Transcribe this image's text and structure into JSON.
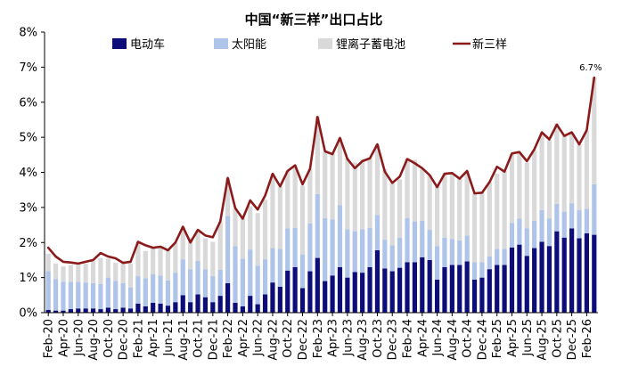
{
  "chart_data": {
    "type": "bar",
    "title": "中国“新三样”出口占比",
    "xlabel": "",
    "ylabel": "",
    "ylim": [
      0,
      8
    ],
    "yticks": [
      "0%",
      "1%",
      "2%",
      "3%",
      "4%",
      "5%",
      "6%",
      "7%",
      "8%"
    ],
    "grid": false,
    "legend_position": "top",
    "stacked": true,
    "categories": [
      "Feb-20",
      "Mar-20",
      "Apr-20",
      "May-20",
      "Jun-20",
      "Jul-20",
      "Aug-20",
      "Sep-20",
      "Oct-20",
      "Nov-20",
      "Dec-20",
      "Jan-21",
      "Feb-21",
      "Mar-21",
      "Apr-21",
      "May-21",
      "Jun-21",
      "Jul-21",
      "Aug-21",
      "Sep-21",
      "Oct-21",
      "Nov-21",
      "Dec-21",
      "Jan-22",
      "Feb-22",
      "Mar-22",
      "Apr-22",
      "May-22",
      "Jun-22",
      "Jul-22",
      "Aug-22",
      "Sep-22",
      "Oct-22",
      "Nov-22",
      "Dec-22",
      "Jan-23",
      "Feb-23",
      "Mar-23",
      "Apr-23",
      "May-23",
      "Jun-23",
      "Jul-23",
      "Aug-23",
      "Sep-23",
      "Oct-23",
      "Nov-23",
      "Dec-23",
      "Jan-24",
      "Feb-24",
      "Mar-24",
      "Apr-24",
      "May-24",
      "Jun-24",
      "Jul-24",
      "Aug-24",
      "Sep-24",
      "Oct-24",
      "Nov-24",
      "Dec-24",
      "Jan-25",
      "Feb-25",
      "Mar-25",
      "Apr-25",
      "May-25",
      "Jun-25",
      "Jul-25",
      "Aug-25",
      "Sep-25",
      "Oct-25",
      "Nov-25",
      "Dec-25",
      "Jan-26",
      "Feb-26",
      "Mar-26"
    ],
    "xtick_labels": [
      "Feb-20",
      "Apr-20",
      "Jun-20",
      "Aug-20",
      "Oct-20",
      "Dec-20",
      "Feb-21",
      "Apr-21",
      "Jun-21",
      "Aug-21",
      "Oct-21",
      "Dec-21",
      "Feb-22",
      "Apr-22",
      "Jun-22",
      "Aug-22",
      "Oct-22",
      "Dec-22",
      "Feb-23",
      "Apr-23",
      "Jun-23",
      "Aug-23",
      "Oct-23",
      "Dec-23",
      "Feb-24",
      "Apr-24",
      "Jun-24",
      "Aug-24",
      "Oct-24",
      "Dec-24",
      "Feb-25",
      "Apr-25",
      "Jun-25",
      "Aug-25",
      "Oct-25",
      "Dec-25",
      "Feb-26"
    ],
    "series": [
      {
        "name": "电动车",
        "kind": "bar",
        "color": "#0d0d7a",
        "values": [
          0.08,
          0.06,
          0.06,
          0.1,
          0.12,
          0.12,
          0.12,
          0.1,
          0.14,
          0.1,
          0.14,
          0.12,
          0.26,
          0.18,
          0.28,
          0.26,
          0.2,
          0.3,
          0.5,
          0.3,
          0.52,
          0.44,
          0.3,
          0.48,
          0.84,
          0.28,
          0.18,
          0.48,
          0.24,
          0.52,
          0.86,
          0.74,
          1.2,
          1.3,
          0.7,
          1.18,
          1.56,
          0.9,
          1.06,
          1.3,
          1.0,
          1.16,
          1.14,
          1.3,
          1.78,
          1.26,
          1.18,
          1.28,
          1.44,
          1.44,
          1.58,
          1.5,
          0.94,
          1.3,
          1.36,
          1.36,
          1.46,
          0.94,
          1.0,
          1.24,
          1.36,
          1.36,
          1.86,
          1.94,
          1.62,
          1.84,
          2.02,
          1.9,
          2.32,
          2.14,
          2.4,
          2.12,
          2.26,
          2.22
        ]
      },
      {
        "name": "太阳能",
        "kind": "bar",
        "color": "#aec4e8",
        "values": [
          1.1,
          0.9,
          0.82,
          0.78,
          0.76,
          0.74,
          0.72,
          0.72,
          0.86,
          0.8,
          0.7,
          0.6,
          0.78,
          0.8,
          0.82,
          0.8,
          0.72,
          0.84,
          1.02,
          0.94,
          0.96,
          0.8,
          0.74,
          0.74,
          1.92,
          1.62,
          1.36,
          1.32,
          1.1,
          1.0,
          0.98,
          1.08,
          1.2,
          1.12,
          0.96,
          1.36,
          1.82,
          1.8,
          1.6,
          1.76,
          1.38,
          1.16,
          1.24,
          1.12,
          1.0,
          0.82,
          0.74,
          0.86,
          1.26,
          1.16,
          1.04,
          0.86,
          0.96,
          0.84,
          0.74,
          0.7,
          0.74,
          0.5,
          0.44,
          0.36,
          0.46,
          0.46,
          0.7,
          0.74,
          0.78,
          0.78,
          0.9,
          0.78,
          0.78,
          0.74,
          0.72,
          0.8,
          0.7,
          1.44
        ]
      },
      {
        "name": "锂离子蓄电池",
        "kind": "bar",
        "color": "#d9d9d9",
        "values": [
          0.5,
          0.44,
          0.44,
          0.48,
          0.5,
          0.54,
          0.62,
          0.74,
          0.54,
          0.52,
          0.56,
          0.68,
          0.98,
          0.78,
          0.76,
          0.8,
          0.88,
          0.86,
          0.92,
          0.9,
          0.86,
          0.88,
          0.98,
          1.38,
          1.08,
          1.06,
          1.16,
          1.24,
          1.5,
          1.7,
          2.12,
          1.76,
          1.64,
          1.8,
          1.96,
          1.56,
          2.22,
          1.88,
          1.86,
          1.92,
          2.02,
          1.96,
          1.98,
          2.0,
          2.02,
          2.02,
          1.8,
          1.66,
          1.7,
          1.76,
          1.48,
          1.56,
          1.7,
          1.84,
          1.88,
          1.76,
          1.84,
          1.96,
          1.98,
          2.12,
          2.14,
          2.22,
          1.96,
          1.88,
          1.88,
          2.02,
          2.2,
          2.24,
          2.3,
          2.16,
          2.0,
          1.88,
          2.22,
          3.04
        ]
      },
      {
        "name": "新三样",
        "kind": "line",
        "color": "#8b1a1a",
        "values": [
          1.85,
          1.6,
          1.45,
          1.43,
          1.4,
          1.45,
          1.5,
          1.7,
          1.6,
          1.55,
          1.42,
          1.45,
          2.02,
          1.92,
          1.85,
          1.88,
          1.78,
          2.0,
          2.45,
          2.0,
          2.36,
          2.2,
          2.15,
          2.6,
          3.84,
          2.98,
          2.68,
          3.2,
          2.94,
          3.34,
          3.96,
          3.6,
          4.04,
          4.2,
          3.66,
          4.1,
          5.58,
          4.6,
          4.52,
          4.98,
          4.38,
          4.12,
          4.32,
          4.4,
          4.8,
          4.02,
          3.7,
          3.88,
          4.38,
          4.26,
          4.12,
          3.92,
          3.58,
          3.96,
          3.98,
          3.82,
          4.04,
          3.4,
          3.42,
          3.72,
          4.16,
          4.02,
          4.54,
          4.58,
          4.32,
          4.66,
          5.14,
          4.94,
          5.36,
          5.04,
          5.14,
          4.8,
          5.2,
          6.7
        ]
      }
    ],
    "annotations": [
      {
        "text": "6.7%",
        "category": "Mar-26",
        "series": "新三样",
        "value": 6.7
      }
    ]
  }
}
